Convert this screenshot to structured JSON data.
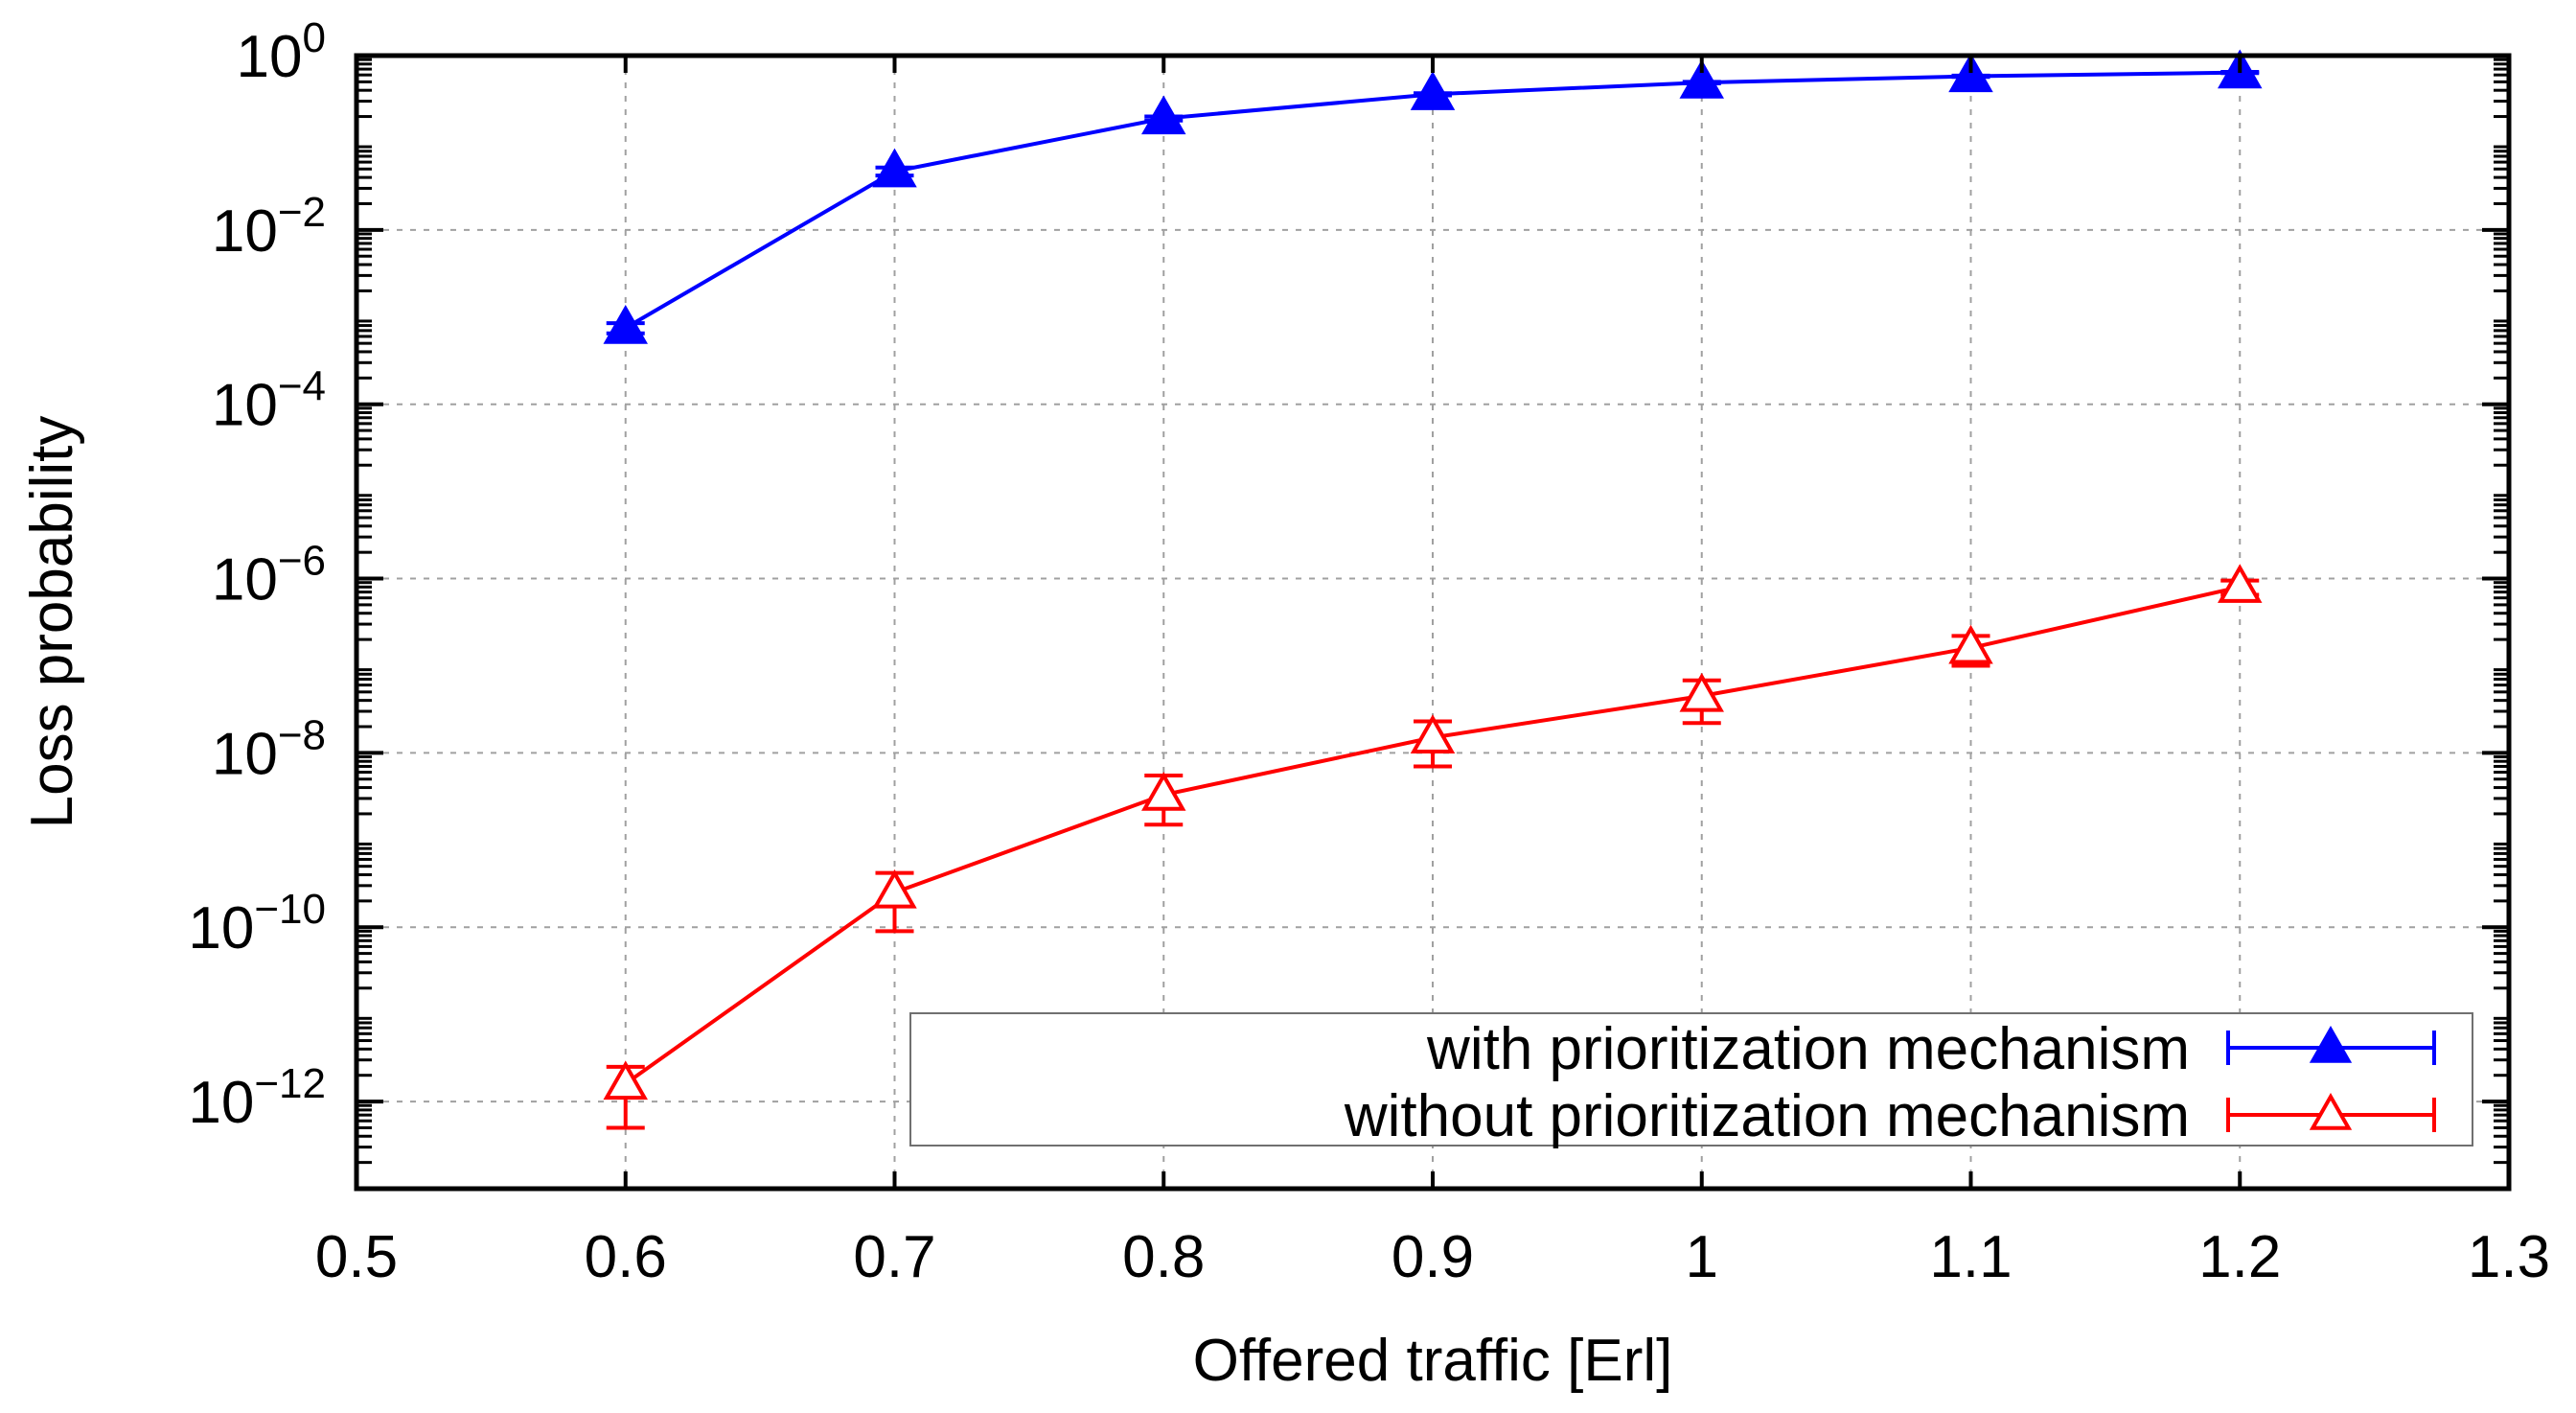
{
  "chart_data": {
    "type": "line",
    "xlabel": "Offered traffic [Erl]",
    "ylabel": "Loss probability",
    "xlim": [
      0.5,
      1.3
    ],
    "ylim": [
      1e-13,
      1
    ],
    "yscale": "log",
    "grid": true,
    "legend_position": "bottom-right",
    "x_ticks": [
      "0.5",
      "0.6",
      "0.7",
      "0.8",
      "0.9",
      "1",
      "1.1",
      "1.2",
      "1.3"
    ],
    "y_ticks": [
      {
        "exp": 0,
        "label_base": "10",
        "label_exp": "0"
      },
      {
        "exp": -2,
        "label_base": "10",
        "label_exp": "−2"
      },
      {
        "exp": -4,
        "label_base": "10",
        "label_exp": "−4"
      },
      {
        "exp": -6,
        "label_base": "10",
        "label_exp": "−6"
      },
      {
        "exp": -8,
        "label_base": "10",
        "label_exp": "−8"
      },
      {
        "exp": -10,
        "label_base": "10",
        "label_exp": "−10"
      },
      {
        "exp": -12,
        "label_base": "10",
        "label_exp": "−12"
      }
    ],
    "series": [
      {
        "name": "with prioritization mechanism",
        "color": "#0000ff",
        "marker": "filled-triangle",
        "x": [
          0.6,
          0.7,
          0.8,
          0.9,
          1.0,
          1.1,
          1.2
        ],
        "y": [
          0.00075,
          0.047,
          0.19,
          0.36,
          0.49,
          0.58,
          0.64
        ],
        "y_low": [
          0.00065,
          0.042,
          0.18,
          0.35,
          0.48,
          0.57,
          0.63
        ],
        "y_high": [
          0.00085,
          0.052,
          0.2,
          0.37,
          0.5,
          0.59,
          0.65
        ]
      },
      {
        "name": "without prioritization mechanism",
        "color": "#ff0000",
        "marker": "open-triangle",
        "x": [
          0.6,
          0.7,
          0.8,
          0.9,
          1.0,
          1.1,
          1.2
        ],
        "y": [
          1.6e-12,
          2.5e-10,
          3.3e-09,
          1.5e-08,
          4.5e-08,
          1.6e-07,
          8e-07
        ],
        "y_low": [
          5e-13,
          9e-11,
          1.5e-09,
          7e-09,
          2.2e-08,
          1e-07,
          6.5e-07
        ],
        "y_high": [
          2.5e-12,
          4.2e-10,
          5.5e-09,
          2.3e-08,
          6.8e-08,
          2.2e-07,
          9.5e-07
        ]
      }
    ]
  }
}
